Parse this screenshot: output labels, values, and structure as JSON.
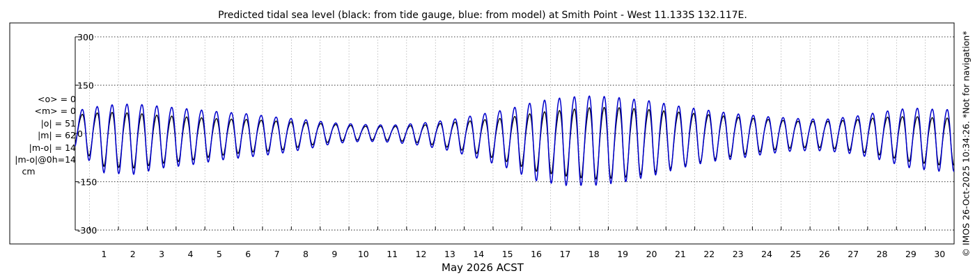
{
  "chart_data": {
    "type": "line",
    "title": "Predicted tidal sea level (black: from tide gauge, blue: from model) at Smith Point - West 11.133S 132.117E.",
    "xlabel": "May 2026 ACST",
    "x_ticks": [
      "1",
      "2",
      "3",
      "4",
      "5",
      "6",
      "7",
      "8",
      "9",
      "10",
      "11",
      "12",
      "13",
      "14",
      "15",
      "16",
      "17",
      "18",
      "19",
      "20",
      "21",
      "22",
      "23",
      "24",
      "25",
      "26",
      "27",
      "28",
      "29",
      "30"
    ],
    "xlim": [
      "2026-04-30T12:00",
      "2026-05-31T00:00"
    ],
    "y_ticks": [
      "300",
      "150",
      "0",
      "-150",
      "-300"
    ],
    "ylim": [
      -300,
      300
    ],
    "grid": true,
    "stats": [
      "<o> = 0",
      "<m> = 0",
      "|o| = 51",
      "|m| = 62",
      "|m-o| = 14",
      "|m-o|@0h=14",
      "cm"
    ],
    "side_note": "© IMOS 26-Oct-2025 10:34:26. *Not for navigation*",
    "series": [
      {
        "color": "#000000",
        "note": "tidal range (high/low envelope) per day, cm",
        "daily_high": [
          65,
          80,
          78,
          68,
          62,
          55,
          52,
          46,
          40,
          32,
          26,
          25,
          30,
          40,
          50,
          60,
          80,
          90,
          100,
          98,
          90,
          80,
          70,
          60,
          52,
          45,
          44,
          50,
          60,
          65,
          60
        ],
        "daily_low": [
          -40,
          -105,
          -110,
          -95,
          -85,
          -70,
          -60,
          -55,
          -40,
          -25,
          -20,
          -22,
          -30,
          -45,
          -65,
          -90,
          -120,
          -135,
          -145,
          -140,
          -125,
          -105,
          -85,
          -70,
          -55,
          -45,
          -45,
          -55,
          -70,
          -90,
          -100
        ]
      },
      {
        "color": "#0000cc",
        "note": "tidal range (high/low envelope) per day, cm",
        "daily_high": [
          80,
          105,
          110,
          100,
          90,
          80,
          72,
          60,
          50,
          38,
          32,
          30,
          38,
          50,
          70,
          90,
          120,
          135,
          140,
          132,
          120,
          100,
          85,
          72,
          62,
          55,
          52,
          62,
          80,
          95,
          90
        ],
        "daily_low": [
          -50,
          -125,
          -130,
          -110,
          -100,
          -85,
          -75,
          -65,
          -50,
          -32,
          -25,
          -28,
          -38,
          -55,
          -80,
          -110,
          -150,
          -165,
          -165,
          -155,
          -135,
          -110,
          -90,
          -80,
          -65,
          -55,
          -55,
          -65,
          -85,
          -110,
          -120
        ]
      }
    ]
  }
}
